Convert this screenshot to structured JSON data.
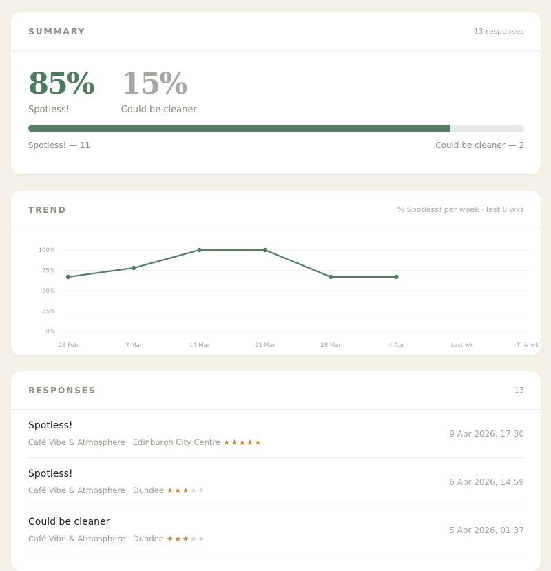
{
  "summary": {
    "title": "SUMMARY",
    "meta": "13 responses",
    "stats": [
      {
        "value": "85%",
        "label": "Spotless!",
        "color": "#4f7a5e"
      },
      {
        "value": "15%",
        "label": "Could be cleaner",
        "color": "#a4a8a4"
      }
    ],
    "progress_fraction": 0.85,
    "left_caption": "Spotless! — 11",
    "right_caption": "Could be cleaner — 2"
  },
  "trend": {
    "title": "TREND",
    "meta": "% Spotless! per week · last 8 wks"
  },
  "chart_data": {
    "type": "line",
    "categories": [
      "28 Feb",
      "7 Mar",
      "14 Mar",
      "21 Mar",
      "28 Mar",
      "4 Apr",
      "Last wk",
      "This wk"
    ],
    "y_ticks": [
      "100%",
      "75%",
      "50%",
      "25%",
      "0%"
    ],
    "ylim": [
      0,
      100
    ],
    "series": [
      {
        "values": [
          67,
          78,
          100,
          100,
          67,
          67,
          null,
          null
        ],
        "color": "#557d63"
      }
    ],
    "grid": true
  },
  "responses": {
    "title": "RESPONSES",
    "count": "13",
    "items": [
      {
        "title": "Spotless!",
        "subtitle": "Café Vibe & Atmosphere · Edinburgh City Centre",
        "stars": 5,
        "date": "9 Apr 2026, 17:30"
      },
      {
        "title": "Spotless!",
        "subtitle": "Café Vibe & Atmosphere · Dundee",
        "stars": 3,
        "date": "6 Apr 2026, 14:59"
      },
      {
        "title": "Could be cleaner",
        "subtitle": "Café Vibe & Atmosphere · Dundee",
        "stars": 3,
        "date": "5 Apr 2026, 01:37"
      }
    ]
  }
}
